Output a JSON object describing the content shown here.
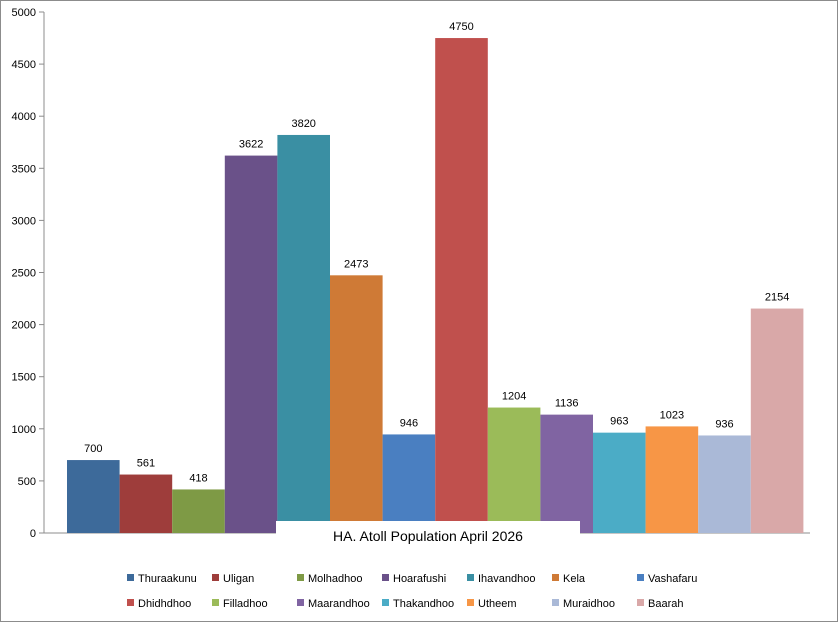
{
  "chart_data": {
    "type": "bar",
    "title": "HA. Atoll Population April 2026",
    "xlabel": "",
    "ylabel": "",
    "ylim": [
      0,
      5000
    ],
    "yticks": [
      0,
      500,
      1000,
      1500,
      2000,
      2500,
      3000,
      3500,
      4000,
      4500,
      5000
    ],
    "grid": false,
    "legend_position": "bottom",
    "series": [
      {
        "name": "Thuraakunu",
        "value": 700,
        "color": "#3d6a9a"
      },
      {
        "name": "Uligan",
        "value": 561,
        "color": "#9e3d3b"
      },
      {
        "name": "Molhadhoo",
        "value": 418,
        "color": "#7e9a45"
      },
      {
        "name": "Hoarafushi",
        "value": 3622,
        "color": "#6a5189"
      },
      {
        "name": "Ihavandhoo",
        "value": 3820,
        "color": "#3a8fa3"
      },
      {
        "name": "Kela",
        "value": 2473,
        "color": "#cf7a36"
      },
      {
        "name": "Vashafaru",
        "value": 946,
        "color": "#4a7fc1"
      },
      {
        "name": "Dhidhdhoo",
        "value": 4750,
        "color": "#c0504d"
      },
      {
        "name": "Filladhoo",
        "value": 1204,
        "color": "#9bbb59"
      },
      {
        "name": "Maarandhoo",
        "value": 1136,
        "color": "#8064a2"
      },
      {
        "name": "Thakandhoo",
        "value": 963,
        "color": "#4bacc6"
      },
      {
        "name": "Utheem",
        "value": 1023,
        "color": "#f79646"
      },
      {
        "name": "Muraidhoo",
        "value": 936,
        "color": "#aab9d7"
      },
      {
        "name": "Baarah",
        "value": 2154,
        "color": "#d9a8a8"
      }
    ]
  }
}
